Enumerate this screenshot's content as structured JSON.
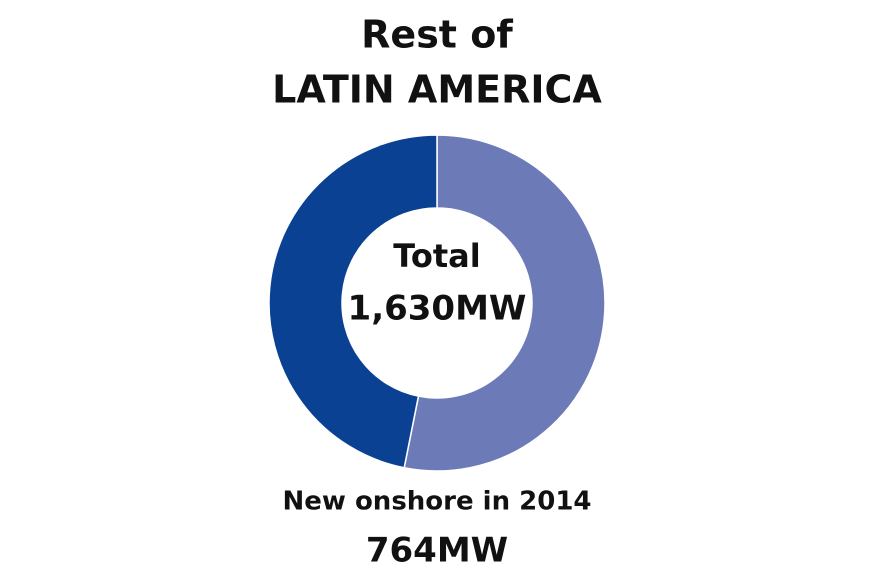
{
  "chart_data": {
    "type": "donut",
    "title": [
      "Rest of",
      "LATIN AMERICA"
    ],
    "center_caption": "Total",
    "total": {
      "value": 1630,
      "label": "1,630MW"
    },
    "categories": [
      null,
      "New onshore in 2014"
    ],
    "values": [
      866,
      764
    ],
    "value_labels": [
      null,
      "764MW"
    ],
    "colors": [
      "#6c7bb8",
      "#0b4193"
    ]
  }
}
